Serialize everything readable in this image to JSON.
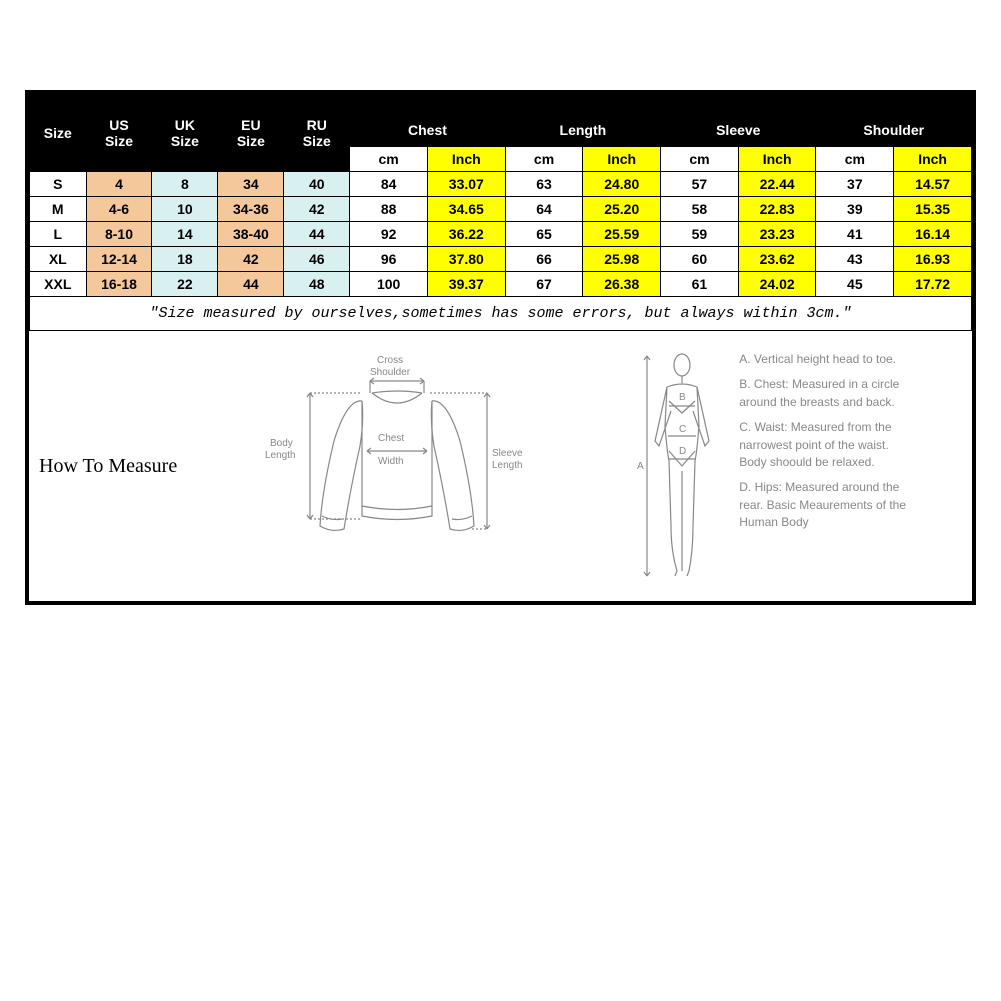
{
  "headers": {
    "size": "Size",
    "us": "US\nSize",
    "uk": "UK\nSize",
    "eu": "EU\nSize",
    "ru": "RU\nSize",
    "chest": "Chest",
    "length": "Length",
    "sleeve": "Sleeve",
    "shoulder": "Shoulder",
    "cm": "cm",
    "inch": "Inch"
  },
  "rows": [
    {
      "size": "S",
      "us": "4",
      "uk": "8",
      "eu": "34",
      "ru": "40",
      "chest_cm": "84",
      "chest_in": "33.07",
      "length_cm": "63",
      "length_in": "24.80",
      "sleeve_cm": "57",
      "sleeve_in": "22.44",
      "shoulder_cm": "37",
      "shoulder_in": "14.57"
    },
    {
      "size": "M",
      "us": "4-6",
      "uk": "10",
      "eu": "34-36",
      "ru": "42",
      "chest_cm": "88",
      "chest_in": "34.65",
      "length_cm": "64",
      "length_in": "25.20",
      "sleeve_cm": "58",
      "sleeve_in": "22.83",
      "shoulder_cm": "39",
      "shoulder_in": "15.35"
    },
    {
      "size": "L",
      "us": "8-10",
      "uk": "14",
      "eu": "38-40",
      "ru": "44",
      "chest_cm": "92",
      "chest_in": "36.22",
      "length_cm": "65",
      "length_in": "25.59",
      "sleeve_cm": "59",
      "sleeve_in": "23.23",
      "shoulder_cm": "41",
      "shoulder_in": "16.14"
    },
    {
      "size": "XL",
      "us": "12-14",
      "uk": "18",
      "eu": "42",
      "ru": "46",
      "chest_cm": "96",
      "chest_in": "37.80",
      "length_cm": "66",
      "length_in": "25.98",
      "sleeve_cm": "60",
      "sleeve_in": "23.62",
      "shoulder_cm": "43",
      "shoulder_in": "16.93"
    },
    {
      "size": "XXL",
      "us": "16-18",
      "uk": "22",
      "eu": "44",
      "ru": "48",
      "chest_cm": "100",
      "chest_in": "39.37",
      "length_cm": "67",
      "length_in": "26.38",
      "sleeve_cm": "61",
      "sleeve_in": "24.02",
      "shoulder_cm": "45",
      "shoulder_in": "17.72"
    }
  ],
  "note": "\"Size measured by ourselves,sometimes has some errors, but always within 3cm.\"",
  "howToMeasure": {
    "title": "How To Measure",
    "garmentLabels": {
      "crossShoulder": "Cross\nShoulder",
      "bodyLength": "Body\nLength",
      "chestWidth": "Chest\nWidth",
      "sleeveLength": "Sleeve\nLength"
    },
    "bodyLabels": {
      "A": "A",
      "B": "B",
      "C": "C",
      "D": "D"
    },
    "bodyText": {
      "a": "A. Vertical height head to toe.",
      "b": "B. Chest: Measured in a circle around the breasts and back.",
      "c": "C. Waist: Measured from the narrowest point of the waist. Body shoould be relaxed.",
      "d": "D. Hips: Measured around the rear. Basic Meaurements of the Human Body"
    }
  },
  "colors": {
    "black": "#000000",
    "white": "#ffffff",
    "yellow": "#ffff00",
    "tan": "#f4c89a",
    "cyan": "#d9f0f0",
    "gray": "#888888"
  }
}
